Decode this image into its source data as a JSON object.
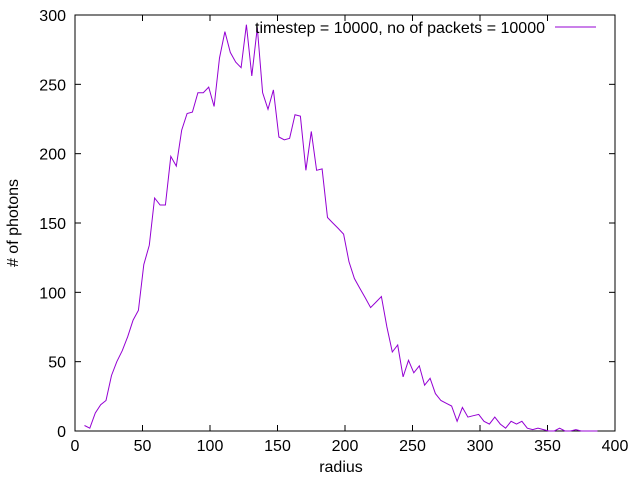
{
  "chart_data": {
    "type": "line",
    "title": "",
    "xlabel": "radius",
    "ylabel": "# of photons",
    "xlim": [
      0,
      400
    ],
    "ylim": [
      0,
      300
    ],
    "xticks": [
      0,
      50,
      100,
      150,
      200,
      250,
      300,
      350,
      400
    ],
    "yticks": [
      0,
      50,
      100,
      150,
      200,
      250,
      300
    ],
    "grid": false,
    "legend_position": "top-right",
    "series": [
      {
        "name": "timestep = 10000, no of packets = 10000",
        "color": "#9400d3",
        "x": [
          7,
          11,
          15,
          19,
          23,
          27,
          31,
          35,
          39,
          43,
          47,
          51,
          55,
          59,
          63,
          67,
          71,
          75,
          79,
          83,
          87,
          91,
          95,
          99,
          103,
          107,
          111,
          115,
          119,
          123,
          127,
          131,
          135,
          139,
          143,
          147,
          151,
          155,
          159,
          163,
          167,
          171,
          175,
          179,
          183,
          187,
          191,
          195,
          199,
          203,
          207,
          211,
          215,
          219,
          223,
          227,
          231,
          235,
          239,
          243,
          247,
          251,
          255,
          259,
          263,
          267,
          271,
          275,
          279,
          283,
          287,
          291,
          295,
          299,
          303,
          307,
          311,
          315,
          319,
          323,
          327,
          331,
          335,
          339,
          343,
          347,
          351,
          355,
          359,
          363,
          367,
          371,
          375,
          379,
          383,
          387
        ],
        "y": [
          4,
          2,
          13,
          19,
          22,
          40,
          50,
          58,
          68,
          80,
          87,
          120,
          134,
          168,
          163,
          163,
          198,
          191,
          217,
          229,
          230,
          244,
          244,
          248,
          234,
          269,
          288,
          273,
          266,
          262,
          293,
          256,
          291,
          244,
          232,
          246,
          212,
          210,
          211,
          228,
          227,
          188,
          216,
          188,
          189,
          154,
          150,
          146,
          142,
          122,
          110,
          103,
          96,
          89,
          93,
          97,
          75,
          57,
          62,
          39,
          51,
          42,
          47,
          33,
          38,
          27,
          22,
          20,
          18,
          7,
          17,
          10,
          11,
          12,
          7,
          5,
          10,
          5,
          2,
          7,
          5,
          7,
          2,
          1,
          2,
          1,
          0,
          0,
          2,
          0,
          0,
          1,
          0,
          0,
          0,
          0
        ]
      }
    ]
  }
}
